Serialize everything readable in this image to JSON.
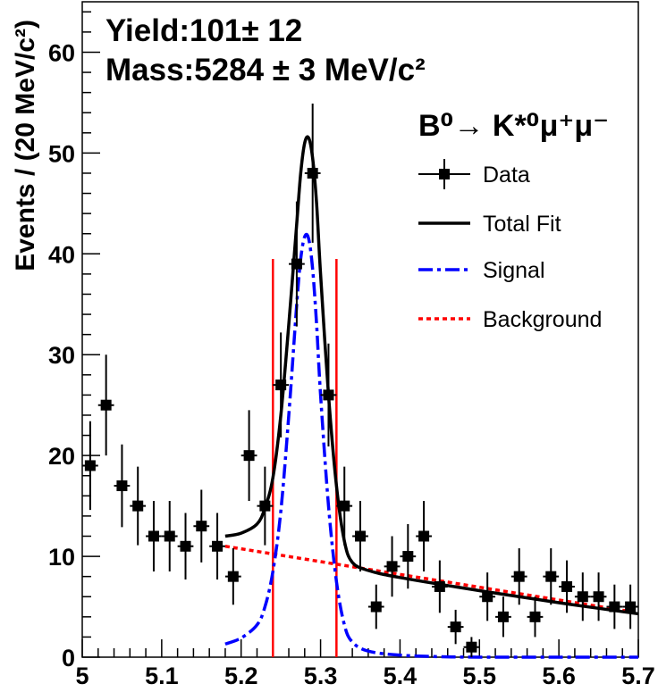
{
  "chart_data": {
    "type": "scatter",
    "title": "",
    "ylabel": "Events / (20 MeV/c²)",
    "xlabel": "",
    "xlim": [
      5.0,
      5.7
    ],
    "ylim": [
      0,
      65
    ],
    "x_ticks": [
      "5",
      "5.1",
      "5.2",
      "5.3",
      "5.4",
      "5.5",
      "5.6",
      "5.7"
    ],
    "y_ticks": [
      "0",
      "10",
      "20",
      "30",
      "40",
      "50",
      "60"
    ],
    "annotations": {
      "yield": "Yield:101± 12",
      "mass": "Mass:5284 ± 3 MeV/c²"
    },
    "legend": {
      "placement": "top-right",
      "title": "B⁰→ K*⁰μ⁺μ⁻",
      "entries": [
        "Data",
        "Total Fit",
        "Signal",
        "Background"
      ]
    },
    "colors": {
      "data": "#000000",
      "total_fit": "#000000",
      "signal": "#0000ff",
      "background": "#ff0000",
      "window": "#ff0000"
    },
    "signal_window": [
      5.24,
      5.32
    ],
    "series": [
      {
        "name": "Data",
        "points": [
          {
            "x": 5.01,
            "y": 19,
            "err": 4.4
          },
          {
            "x": 5.03,
            "y": 25,
            "err": 5.0
          },
          {
            "x": 5.05,
            "y": 17,
            "err": 4.1
          },
          {
            "x": 5.07,
            "y": 15,
            "err": 3.9
          },
          {
            "x": 5.09,
            "y": 12,
            "err": 3.5
          },
          {
            "x": 5.11,
            "y": 12,
            "err": 3.5
          },
          {
            "x": 5.13,
            "y": 11,
            "err": 3.3
          },
          {
            "x": 5.15,
            "y": 13,
            "err": 3.6
          },
          {
            "x": 5.17,
            "y": 11,
            "err": 3.3
          },
          {
            "x": 5.19,
            "y": 8,
            "err": 2.8
          },
          {
            "x": 5.21,
            "y": 20,
            "err": 4.5
          },
          {
            "x": 5.23,
            "y": 15,
            "err": 3.9
          },
          {
            "x": 5.25,
            "y": 27,
            "err": 5.2
          },
          {
            "x": 5.27,
            "y": 39,
            "err": 6.2
          },
          {
            "x": 5.29,
            "y": 48,
            "err": 6.9
          },
          {
            "x": 5.31,
            "y": 26,
            "err": 5.1
          },
          {
            "x": 5.33,
            "y": 15,
            "err": 3.9
          },
          {
            "x": 5.35,
            "y": 12,
            "err": 3.5
          },
          {
            "x": 5.37,
            "y": 5,
            "err": 2.2
          },
          {
            "x": 5.39,
            "y": 9,
            "err": 3.0
          },
          {
            "x": 5.41,
            "y": 10,
            "err": 3.2
          },
          {
            "x": 5.43,
            "y": 12,
            "err": 3.5
          },
          {
            "x": 5.45,
            "y": 7,
            "err": 2.6
          },
          {
            "x": 5.47,
            "y": 3,
            "err": 1.7
          },
          {
            "x": 5.49,
            "y": 1,
            "err": 1.0
          },
          {
            "x": 5.51,
            "y": 6,
            "err": 2.4
          },
          {
            "x": 5.53,
            "y": 4,
            "err": 2.0
          },
          {
            "x": 5.55,
            "y": 8,
            "err": 2.8
          },
          {
            "x": 5.57,
            "y": 4,
            "err": 2.0
          },
          {
            "x": 5.59,
            "y": 8,
            "err": 2.8
          },
          {
            "x": 5.61,
            "y": 7,
            "err": 2.6
          },
          {
            "x": 5.63,
            "y": 6,
            "err": 2.4
          },
          {
            "x": 5.65,
            "y": 6,
            "err": 2.4
          },
          {
            "x": 5.67,
            "y": 5,
            "err": 2.2
          },
          {
            "x": 5.69,
            "y": 5,
            "err": 2.2
          }
        ]
      },
      {
        "name": "Total Fit",
        "x": [
          5.18,
          5.2,
          5.22,
          5.23,
          5.24,
          5.25,
          5.26,
          5.27,
          5.275,
          5.28,
          5.285,
          5.29,
          5.295,
          5.3,
          5.31,
          5.32,
          5.33,
          5.34,
          5.36,
          5.4,
          5.5,
          5.6,
          5.7
        ],
        "y": [
          12.0,
          12.3,
          13.2,
          14.8,
          17.8,
          24.0,
          33.0,
          43.0,
          48.0,
          51.0,
          51.5,
          49.5,
          45.0,
          38.0,
          26.0,
          17.0,
          11.5,
          9.4,
          8.6,
          7.9,
          6.6,
          5.4,
          4.3
        ]
      },
      {
        "name": "Signal",
        "x": [
          5.18,
          5.2,
          5.22,
          5.23,
          5.24,
          5.25,
          5.26,
          5.27,
          5.275,
          5.28,
          5.285,
          5.29,
          5.295,
          5.3,
          5.31,
          5.32,
          5.33,
          5.34,
          5.36,
          5.4,
          5.45,
          5.5,
          5.6,
          5.7
        ],
        "y": [
          1.3,
          1.9,
          3.2,
          5.0,
          8.5,
          14.5,
          24.0,
          35.0,
          39.5,
          41.7,
          41.5,
          38.5,
          33.0,
          26.0,
          15.0,
          7.5,
          3.2,
          1.5,
          0.6,
          0.2,
          0.05,
          0.0,
          0.0,
          0.0
        ]
      },
      {
        "name": "Background",
        "x": [
          5.18,
          5.7
        ],
        "y": [
          11.0,
          4.4
        ]
      }
    ]
  }
}
